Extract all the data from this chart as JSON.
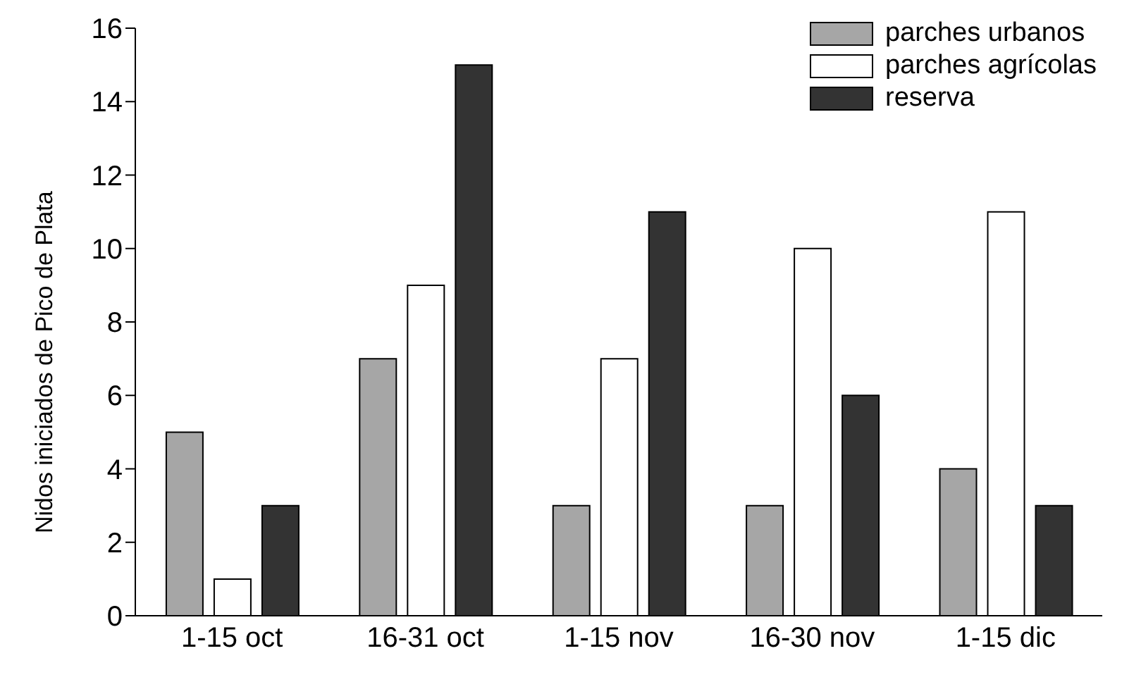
{
  "chart_data": {
    "type": "bar",
    "ylabel": "Nidos iniciados de Pico de Plata",
    "categories": [
      "1-15 oct",
      "16-31 oct",
      "1-15 nov",
      "16-30 nov",
      "1-15 dic"
    ],
    "series": [
      {
        "name": "parches urbanos",
        "color": "#a6a6a6",
        "values": [
          5,
          7,
          3,
          3,
          4
        ]
      },
      {
        "name": "parches agrícolas",
        "color": "#ffffff",
        "values": [
          1,
          9,
          7,
          10,
          11
        ]
      },
      {
        "name": "reserva",
        "color": "#333333",
        "values": [
          3,
          15,
          11,
          6,
          3
        ]
      }
    ],
    "ylim": [
      0,
      16
    ],
    "yticks": [
      0,
      2,
      4,
      6,
      8,
      10,
      12,
      14,
      16
    ],
    "grid": false,
    "legend": "top right"
  }
}
